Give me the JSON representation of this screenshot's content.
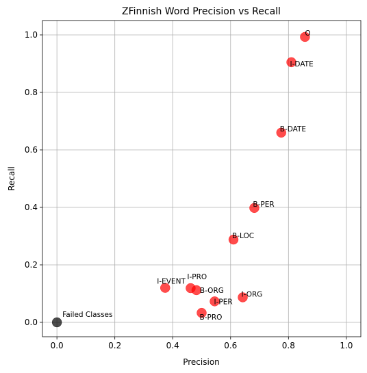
{
  "chart_data": {
    "type": "scatter",
    "title": "ZFinnish Word Precision vs Recall",
    "xlabel": "Precision",
    "ylabel": "Recall",
    "xlim": [
      -0.05,
      1.05
    ],
    "ylim": [
      -0.05,
      1.05
    ],
    "xticks": [
      "0.0",
      "0.2",
      "0.4",
      "0.6",
      "0.8",
      "1.0"
    ],
    "yticks": [
      "0.0",
      "0.2",
      "0.4",
      "0.6",
      "0.8",
      "1.0"
    ],
    "grid": true,
    "colors": {
      "points": "#ff0000",
      "failed": "#000000"
    },
    "points": [
      {
        "label": "O",
        "x": 0.857,
        "y": 0.993
      },
      {
        "label": "I-DATE",
        "x": 0.81,
        "y": 0.905
      },
      {
        "label": "B-DATE",
        "x": 0.775,
        "y": 0.66
      },
      {
        "label": "B-PER",
        "x": 0.682,
        "y": 0.398
      },
      {
        "label": "B-LOC",
        "x": 0.61,
        "y": 0.288
      },
      {
        "label": "I-EVENT",
        "x": 0.374,
        "y": 0.12
      },
      {
        "label": "I-PRO",
        "x": 0.462,
        "y": 0.119
      },
      {
        "label": "B-ORG",
        "x": 0.482,
        "y": 0.112
      },
      {
        "label": "I-ORG",
        "x": 0.642,
        "y": 0.087
      },
      {
        "label": "I-PER",
        "x": 0.545,
        "y": 0.073
      },
      {
        "label": "B-PRO",
        "x": 0.5,
        "y": 0.033
      }
    ],
    "failed": {
      "label": "Failed Classes",
      "x": 0.0,
      "y": 0.0
    }
  }
}
